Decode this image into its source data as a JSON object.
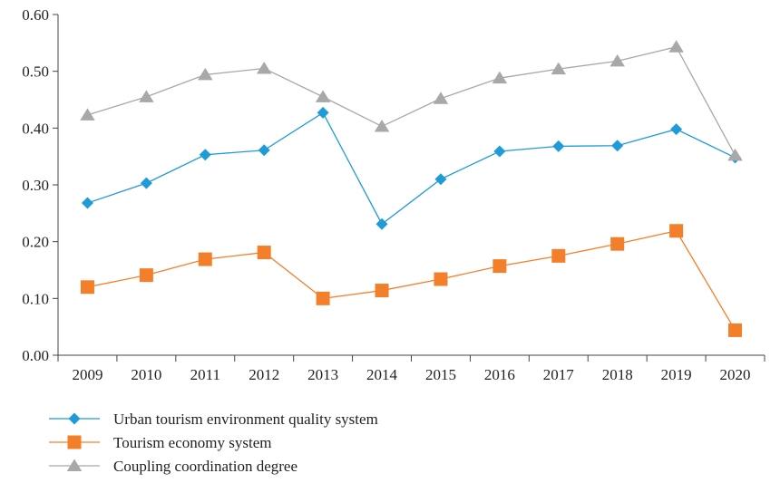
{
  "chart_data": {
    "type": "line",
    "categories": [
      "2009",
      "2010",
      "2011",
      "2012",
      "2013",
      "2014",
      "2015",
      "2016",
      "2017",
      "2018",
      "2019",
      "2020"
    ],
    "ylim": [
      0,
      0.6
    ],
    "yticks": [
      "0.00",
      "0.10",
      "0.20",
      "0.30",
      "0.40",
      "0.50",
      "0.60"
    ],
    "grid": false,
    "legend_position": "bottom-left",
    "series": [
      {
        "name": "Urban tourism environment quality system",
        "color": "#1f9bd7",
        "marker": "diamond",
        "values": [
          0.268,
          0.303,
          0.353,
          0.361,
          0.427,
          0.231,
          0.31,
          0.359,
          0.368,
          0.369,
          0.398,
          0.348
        ]
      },
      {
        "name": "Tourism economy system",
        "color": "#f47f2a",
        "marker": "square",
        "values": [
          0.12,
          0.141,
          0.169,
          0.181,
          0.1,
          0.114,
          0.134,
          0.157,
          0.175,
          0.196,
          0.219,
          0.044
        ]
      },
      {
        "name": "Coupling coordination degree",
        "color": "#a8a8a8",
        "marker": "triangle",
        "values": [
          0.423,
          0.455,
          0.494,
          0.505,
          0.455,
          0.403,
          0.452,
          0.488,
          0.504,
          0.518,
          0.543,
          0.352
        ]
      }
    ]
  }
}
